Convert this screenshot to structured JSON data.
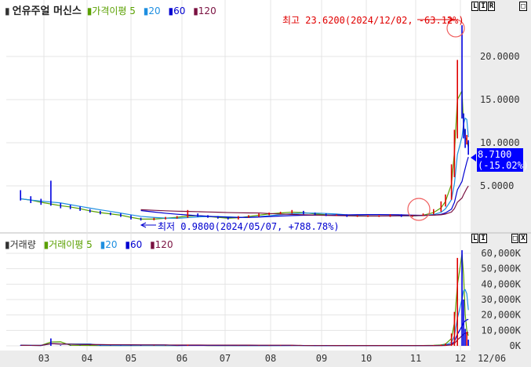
{
  "price_panel": {
    "title": "언유주얼 머신스",
    "legend": [
      {
        "label": "가격이평 5",
        "color": "#5aa000"
      },
      {
        "label": "20",
        "color": "#1e8fe0"
      },
      {
        "label": "60",
        "color": "#0000d0"
      },
      {
        "label": "120",
        "color": "#7a1040"
      }
    ],
    "buttons": [
      "L",
      "I",
      "R",
      "□"
    ],
    "high_annotation": "최고 23.6200(2024/12/02, -63.12%)",
    "low_annotation": "최저 0.9800(2024/05/07, +788.78%)",
    "current_price": "8.7100",
    "current_change": "(-15.02%)"
  },
  "volume_panel": {
    "title": "거래량",
    "legend": [
      {
        "label": "거래이평 5",
        "color": "#5aa000"
      },
      {
        "label": "20",
        "color": "#1e8fe0"
      },
      {
        "label": "60",
        "color": "#0000d0"
      },
      {
        "label": "120",
        "color": "#7a1040"
      }
    ],
    "buttons": [
      "L",
      "I",
      "□",
      "X"
    ]
  },
  "colors": {
    "up": "#e00000",
    "down": "#0000e0",
    "grid": "#e4e4e4",
    "axis_bg": "#ececec",
    "highlight": "#0000ff"
  },
  "chart_data": [
    {
      "type": "candlestick",
      "ylim": [
        0,
        24.5
      ],
      "yticks": [
        "5.0000",
        "10.0000",
        "15.0000",
        "20.0000"
      ],
      "ytick_values": [
        5,
        10,
        15,
        20
      ],
      "xticks": [
        "03",
        "04",
        "05",
        "06",
        "07",
        "08",
        "09",
        "10",
        "11",
        "12"
      ],
      "last_date_label": "12/06",
      "points": [
        {
          "date": "2024-02-14",
          "o": 3.6,
          "h": 4.5,
          "l": 3.3,
          "c": 3.5
        },
        {
          "date": "2024-02-21",
          "o": 3.5,
          "h": 3.8,
          "l": 3.0,
          "c": 3.2
        },
        {
          "date": "2024-02-28",
          "o": 3.2,
          "h": 3.5,
          "l": 2.8,
          "c": 3.0
        },
        {
          "date": "2024-03-06",
          "o": 3.0,
          "h": 5.6,
          "l": 2.7,
          "c": 2.8
        },
        {
          "date": "2024-03-13",
          "o": 2.8,
          "h": 3.0,
          "l": 2.4,
          "c": 2.6
        },
        {
          "date": "2024-03-20",
          "o": 2.6,
          "h": 2.8,
          "l": 2.3,
          "c": 2.5
        },
        {
          "date": "2024-03-27",
          "o": 2.5,
          "h": 2.6,
          "l": 2.1,
          "c": 2.2
        },
        {
          "date": "2024-04-03",
          "o": 2.2,
          "h": 2.3,
          "l": 1.9,
          "c": 2.0
        },
        {
          "date": "2024-04-10",
          "o": 2.0,
          "h": 2.1,
          "l": 1.7,
          "c": 1.8
        },
        {
          "date": "2024-04-17",
          "o": 1.8,
          "h": 1.9,
          "l": 1.6,
          "c": 1.7
        },
        {
          "date": "2024-04-24",
          "o": 1.7,
          "h": 1.8,
          "l": 1.4,
          "c": 1.5
        },
        {
          "date": "2024-05-01",
          "o": 1.5,
          "h": 1.6,
          "l": 1.1,
          "c": 1.2
        },
        {
          "date": "2024-05-07",
          "o": 1.2,
          "h": 1.3,
          "l": 0.98,
          "c": 1.1
        },
        {
          "date": "2024-05-15",
          "o": 1.1,
          "h": 1.3,
          "l": 1.0,
          "c": 1.2
        },
        {
          "date": "2024-05-22",
          "o": 1.2,
          "h": 1.4,
          "l": 1.1,
          "c": 1.3
        },
        {
          "date": "2024-05-29",
          "o": 1.3,
          "h": 1.5,
          "l": 1.2,
          "c": 1.4
        },
        {
          "date": "2024-06-05",
          "o": 1.4,
          "h": 2.2,
          "l": 1.3,
          "c": 1.6
        },
        {
          "date": "2024-06-12",
          "o": 1.6,
          "h": 1.8,
          "l": 1.4,
          "c": 1.5
        },
        {
          "date": "2024-06-19",
          "o": 1.5,
          "h": 1.6,
          "l": 1.3,
          "c": 1.4
        },
        {
          "date": "2024-06-26",
          "o": 1.4,
          "h": 1.5,
          "l": 1.2,
          "c": 1.3
        },
        {
          "date": "2024-07-03",
          "o": 1.3,
          "h": 1.4,
          "l": 1.1,
          "c": 1.2
        },
        {
          "date": "2024-07-10",
          "o": 1.2,
          "h": 1.5,
          "l": 1.1,
          "c": 1.4
        },
        {
          "date": "2024-07-17",
          "o": 1.4,
          "h": 1.6,
          "l": 1.3,
          "c": 1.5
        },
        {
          "date": "2024-07-24",
          "o": 1.5,
          "h": 1.8,
          "l": 1.4,
          "c": 1.7
        },
        {
          "date": "2024-07-31",
          "o": 1.7,
          "h": 1.9,
          "l": 1.6,
          "c": 1.8
        },
        {
          "date": "2024-08-07",
          "o": 1.8,
          "h": 2.0,
          "l": 1.7,
          "c": 1.9
        },
        {
          "date": "2024-08-14",
          "o": 1.9,
          "h": 2.2,
          "l": 1.8,
          "c": 2.0
        },
        {
          "date": "2024-08-21",
          "o": 2.0,
          "h": 2.1,
          "l": 1.7,
          "c": 1.8
        },
        {
          "date": "2024-08-28",
          "o": 1.8,
          "h": 1.9,
          "l": 1.6,
          "c": 1.7
        },
        {
          "date": "2024-09-04",
          "o": 1.7,
          "h": 1.8,
          "l": 1.5,
          "c": 1.6
        },
        {
          "date": "2024-09-11",
          "o": 1.6,
          "h": 1.7,
          "l": 1.5,
          "c": 1.6
        },
        {
          "date": "2024-09-18",
          "o": 1.6,
          "h": 1.7,
          "l": 1.4,
          "c": 1.5
        },
        {
          "date": "2024-09-25",
          "o": 1.5,
          "h": 1.6,
          "l": 1.4,
          "c": 1.5
        },
        {
          "date": "2024-10-02",
          "o": 1.5,
          "h": 1.6,
          "l": 1.4,
          "c": 1.5
        },
        {
          "date": "2024-10-09",
          "o": 1.5,
          "h": 1.6,
          "l": 1.4,
          "c": 1.5
        },
        {
          "date": "2024-10-16",
          "o": 1.5,
          "h": 1.7,
          "l": 1.4,
          "c": 1.6
        },
        {
          "date": "2024-10-23",
          "o": 1.6,
          "h": 1.7,
          "l": 1.4,
          "c": 1.5
        },
        {
          "date": "2024-10-30",
          "o": 1.5,
          "h": 1.6,
          "l": 1.4,
          "c": 1.5
        },
        {
          "date": "2024-11-06",
          "o": 1.5,
          "h": 1.8,
          "l": 1.5,
          "c": 1.7
        },
        {
          "date": "2024-11-13",
          "o": 1.7,
          "h": 2.3,
          "l": 1.7,
          "c": 2.1
        },
        {
          "date": "2024-11-18",
          "o": 2.1,
          "h": 3.2,
          "l": 2.0,
          "c": 2.8
        },
        {
          "date": "2024-11-21",
          "o": 2.8,
          "h": 4.0,
          "l": 2.6,
          "c": 3.6
        },
        {
          "date": "2024-11-25",
          "o": 3.6,
          "h": 7.5,
          "l": 3.4,
          "c": 6.8
        },
        {
          "date": "2024-11-27",
          "o": 6.8,
          "h": 11.5,
          "l": 6.0,
          "c": 11.0
        },
        {
          "date": "2024-11-29",
          "o": 11.0,
          "h": 19.6,
          "l": 10.5,
          "c": 19.0
        },
        {
          "date": "2024-12-02",
          "o": 19.0,
          "h": 23.62,
          "l": 12.8,
          "c": 13.0
        },
        {
          "date": "2024-12-03",
          "o": 13.0,
          "h": 13.4,
          "l": 10.5,
          "c": 11.0
        },
        {
          "date": "2024-12-04",
          "o": 11.0,
          "h": 11.6,
          "l": 9.4,
          "c": 10.25
        },
        {
          "date": "2024-12-05",
          "o": 10.25,
          "h": 10.9,
          "l": 9.8,
          "c": 10.25
        },
        {
          "date": "2024-12-06",
          "o": 10.25,
          "h": 10.3,
          "l": 8.6,
          "c": 8.71
        }
      ]
    },
    {
      "type": "bar",
      "unit": "K",
      "ylim": [
        0,
        66000
      ],
      "yticks": [
        "0K",
        "10,000K",
        "20,000K",
        "30,000K",
        "40,000K",
        "50,000K",
        "60,000K"
      ],
      "ytick_values": [
        0,
        10000,
        20000,
        30000,
        40000,
        50000,
        60000
      ],
      "volumes": [
        300,
        250,
        200,
        4800,
        400,
        300,
        250,
        200,
        200,
        180,
        150,
        200,
        250,
        200,
        180,
        160,
        700,
        200,
        150,
        150,
        150,
        150,
        180,
        200,
        200,
        220,
        250,
        200,
        180,
        160,
        150,
        150,
        150,
        150,
        150,
        160,
        150,
        150,
        200,
        400,
        800,
        1500,
        8000,
        22000,
        57000,
        62000,
        30000,
        11000,
        9000,
        4000
      ]
    }
  ]
}
